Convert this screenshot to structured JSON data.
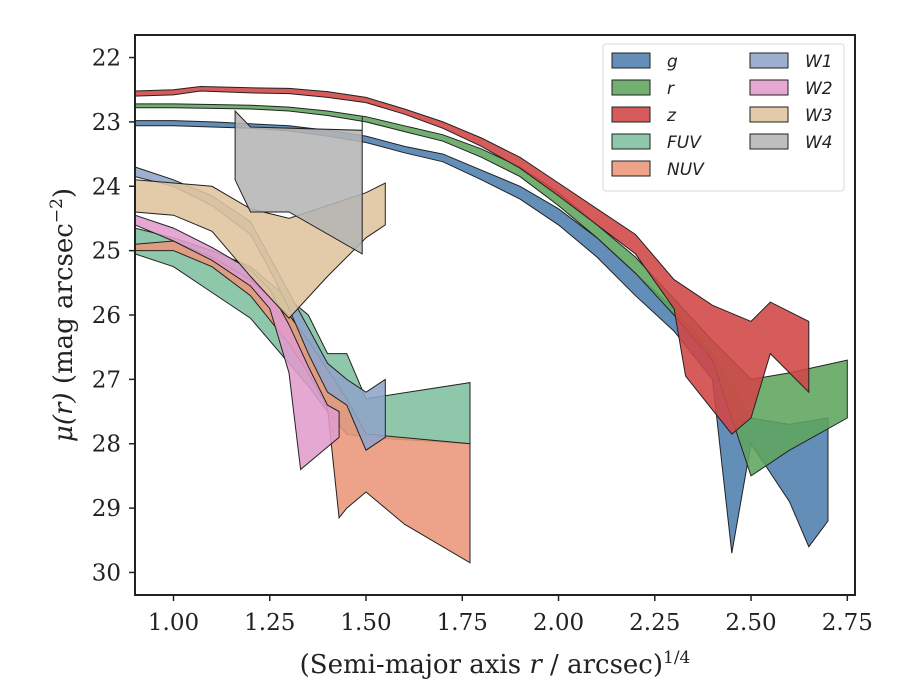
{
  "chart_data": {
    "type": "area",
    "xlabel": "(Semi-major axis r / arcsec)^1/4",
    "xlabel_parts": {
      "prefix": "(Semi-major axis ",
      "var": "r",
      "suffix": " / arcsec)",
      "exp": "1/4"
    },
    "ylabel": "μ(r) (mag arcsec^-2)",
    "ylabel_parts": {
      "mu": "μ(",
      "var": "r",
      "close": ")",
      "unit": " (mag arcsec",
      "exp": "−2",
      "end": ")"
    },
    "xlim": [
      0.9,
      2.77
    ],
    "ylim": [
      30.35,
      21.65
    ],
    "y_inverted": true,
    "x_ticks": [
      1.0,
      1.25,
      1.5,
      1.75,
      2.0,
      2.25,
      2.5,
      2.75
    ],
    "x_tick_labels": [
      "1.00",
      "1.25",
      "1.50",
      "1.75",
      "2.00",
      "2.25",
      "2.50",
      "2.75"
    ],
    "y_ticks": [
      22,
      23,
      24,
      25,
      26,
      27,
      28,
      29,
      30
    ],
    "y_tick_labels": [
      "22",
      "23",
      "24",
      "25",
      "26",
      "27",
      "28",
      "29",
      "30"
    ],
    "legend": {
      "placement": "top-right",
      "columns": 2
    },
    "series": [
      {
        "name": "g",
        "color": "#4c7eae",
        "upper": [
          [
            0.9,
            22.98
          ],
          [
            1.0,
            22.98
          ],
          [
            1.1,
            23.0
          ],
          [
            1.2,
            23.03
          ],
          [
            1.3,
            23.06
          ],
          [
            1.4,
            23.13
          ],
          [
            1.5,
            23.22
          ],
          [
            1.6,
            23.38
          ],
          [
            1.7,
            23.5
          ],
          [
            1.8,
            23.75
          ],
          [
            1.9,
            24.0
          ],
          [
            2.0,
            24.35
          ],
          [
            2.1,
            24.8
          ],
          [
            2.2,
            25.35
          ],
          [
            2.3,
            25.9
          ],
          [
            2.4,
            26.6
          ],
          [
            2.5,
            27.6
          ],
          [
            2.6,
            27.7
          ],
          [
            2.7,
            27.6
          ]
        ],
        "lower": [
          [
            0.9,
            23.06
          ],
          [
            1.0,
            23.06
          ],
          [
            1.1,
            23.08
          ],
          [
            1.2,
            23.1
          ],
          [
            1.3,
            23.14
          ],
          [
            1.4,
            23.22
          ],
          [
            1.5,
            23.32
          ],
          [
            1.6,
            23.48
          ],
          [
            1.7,
            23.62
          ],
          [
            1.8,
            23.9
          ],
          [
            1.9,
            24.2
          ],
          [
            2.0,
            24.6
          ],
          [
            2.1,
            25.1
          ],
          [
            2.2,
            25.7
          ],
          [
            2.3,
            26.25
          ],
          [
            2.4,
            27.0
          ],
          [
            2.45,
            29.7
          ],
          [
            2.5,
            28.0
          ],
          [
            2.6,
            28.9
          ],
          [
            2.65,
            29.6
          ],
          [
            2.7,
            29.2
          ]
        ]
      },
      {
        "name": "r",
        "color": "#5ea55e",
        "upper": [
          [
            0.9,
            22.72
          ],
          [
            1.0,
            22.72
          ],
          [
            1.1,
            22.73
          ],
          [
            1.2,
            22.74
          ],
          [
            1.3,
            22.77
          ],
          [
            1.4,
            22.83
          ],
          [
            1.5,
            22.92
          ],
          [
            1.6,
            23.06
          ],
          [
            1.7,
            23.2
          ],
          [
            1.8,
            23.42
          ],
          [
            1.9,
            23.7
          ],
          [
            2.0,
            24.1
          ],
          [
            2.1,
            24.6
          ],
          [
            2.2,
            25.1
          ],
          [
            2.3,
            25.75
          ],
          [
            2.4,
            26.4
          ],
          [
            2.5,
            27.0
          ],
          [
            2.6,
            26.9
          ],
          [
            2.75,
            26.7
          ]
        ],
        "lower": [
          [
            0.9,
            22.78
          ],
          [
            1.0,
            22.78
          ],
          [
            1.1,
            22.79
          ],
          [
            1.2,
            22.8
          ],
          [
            1.3,
            22.83
          ],
          [
            1.4,
            22.9
          ],
          [
            1.5,
            23.0
          ],
          [
            1.6,
            23.15
          ],
          [
            1.7,
            23.3
          ],
          [
            1.8,
            23.55
          ],
          [
            1.9,
            23.85
          ],
          [
            2.0,
            24.3
          ],
          [
            2.1,
            24.8
          ],
          [
            2.2,
            25.35
          ],
          [
            2.3,
            26.0
          ],
          [
            2.4,
            26.7
          ],
          [
            2.5,
            28.5
          ],
          [
            2.6,
            28.1
          ],
          [
            2.75,
            27.6
          ]
        ]
      },
      {
        "name": "z",
        "color": "#d04545",
        "upper": [
          [
            0.9,
            22.52
          ],
          [
            1.0,
            22.5
          ],
          [
            1.07,
            22.45
          ],
          [
            1.2,
            22.47
          ],
          [
            1.3,
            22.48
          ],
          [
            1.4,
            22.53
          ],
          [
            1.5,
            22.62
          ],
          [
            1.6,
            22.8
          ],
          [
            1.7,
            23.0
          ],
          [
            1.8,
            23.25
          ],
          [
            1.9,
            23.55
          ],
          [
            2.0,
            23.95
          ],
          [
            2.1,
            24.35
          ],
          [
            2.2,
            24.75
          ],
          [
            2.3,
            25.45
          ],
          [
            2.4,
            25.85
          ],
          [
            2.5,
            26.1
          ],
          [
            2.55,
            25.8
          ],
          [
            2.65,
            26.1
          ]
        ],
        "lower": [
          [
            0.9,
            22.6
          ],
          [
            1.0,
            22.58
          ],
          [
            1.07,
            22.52
          ],
          [
            1.2,
            22.55
          ],
          [
            1.3,
            22.56
          ],
          [
            1.4,
            22.62
          ],
          [
            1.5,
            22.7
          ],
          [
            1.6,
            22.88
          ],
          [
            1.7,
            23.1
          ],
          [
            1.8,
            23.38
          ],
          [
            1.9,
            23.72
          ],
          [
            2.0,
            24.15
          ],
          [
            2.1,
            24.6
          ],
          [
            2.2,
            25.05
          ],
          [
            2.3,
            25.9
          ],
          [
            2.33,
            26.95
          ],
          [
            2.45,
            27.85
          ],
          [
            2.5,
            27.6
          ],
          [
            2.55,
            26.6
          ],
          [
            2.65,
            27.2
          ]
        ]
      },
      {
        "name": "FUV",
        "color": "#7fbf9f",
        "upper": [
          [
            0.9,
            24.65
          ],
          [
            1.0,
            24.8
          ],
          [
            1.1,
            25.0
          ],
          [
            1.2,
            25.25
          ],
          [
            1.3,
            25.75
          ],
          [
            1.35,
            26.0
          ],
          [
            1.4,
            26.6
          ],
          [
            1.45,
            26.6
          ],
          [
            1.5,
            27.3
          ],
          [
            1.77,
            27.05
          ]
        ],
        "lower": [
          [
            0.9,
            25.05
          ],
          [
            1.0,
            25.25
          ],
          [
            1.1,
            25.65
          ],
          [
            1.2,
            26.05
          ],
          [
            1.3,
            26.75
          ],
          [
            1.35,
            27.1
          ],
          [
            1.4,
            27.5
          ],
          [
            1.45,
            27.85
          ],
          [
            1.5,
            27.9
          ],
          [
            1.77,
            28.0
          ]
        ]
      },
      {
        "name": "NUV",
        "color": "#e9967a",
        "upper": [
          [
            0.9,
            24.9
          ],
          [
            1.0,
            24.85
          ],
          [
            1.1,
            25.1
          ],
          [
            1.2,
            25.45
          ],
          [
            1.3,
            26.0
          ],
          [
            1.35,
            26.4
          ],
          [
            1.4,
            26.85
          ],
          [
            1.45,
            27.3
          ],
          [
            1.5,
            27.85
          ],
          [
            1.77,
            28.0
          ]
        ],
        "lower": [
          [
            0.9,
            25.0
          ],
          [
            1.0,
            25.0
          ],
          [
            1.1,
            25.25
          ],
          [
            1.2,
            25.7
          ],
          [
            1.3,
            26.45
          ],
          [
            1.35,
            26.9
          ],
          [
            1.4,
            27.45
          ],
          [
            1.43,
            29.15
          ],
          [
            1.45,
            29.0
          ],
          [
            1.5,
            28.75
          ],
          [
            1.6,
            29.25
          ],
          [
            1.77,
            29.85
          ]
        ]
      },
      {
        "name": "W1",
        "color": "#8fa5c8",
        "upper": [
          [
            0.9,
            23.7
          ],
          [
            1.0,
            23.9
          ],
          [
            1.1,
            24.15
          ],
          [
            1.2,
            24.55
          ],
          [
            1.25,
            25.1
          ],
          [
            1.3,
            25.65
          ],
          [
            1.35,
            26.2
          ],
          [
            1.4,
            26.75
          ],
          [
            1.45,
            27.0
          ],
          [
            1.5,
            27.2
          ],
          [
            1.55,
            27.0
          ]
        ],
        "lower": [
          [
            0.9,
            23.85
          ],
          [
            1.0,
            24.0
          ],
          [
            1.1,
            24.3
          ],
          [
            1.2,
            24.75
          ],
          [
            1.25,
            25.3
          ],
          [
            1.3,
            25.9
          ],
          [
            1.35,
            26.6
          ],
          [
            1.4,
            27.2
          ],
          [
            1.45,
            27.4
          ],
          [
            1.5,
            28.1
          ],
          [
            1.55,
            27.9
          ]
        ]
      },
      {
        "name": "W2",
        "color": "#e09ccc",
        "upper": [
          [
            0.9,
            24.45
          ],
          [
            1.0,
            24.65
          ],
          [
            1.1,
            24.95
          ],
          [
            1.2,
            25.3
          ],
          [
            1.25,
            25.6
          ],
          [
            1.3,
            26.15
          ],
          [
            1.35,
            26.8
          ],
          [
            1.4,
            27.4
          ],
          [
            1.43,
            27.5
          ]
        ],
        "lower": [
          [
            0.9,
            24.6
          ],
          [
            1.0,
            24.85
          ],
          [
            1.1,
            25.15
          ],
          [
            1.2,
            25.55
          ],
          [
            1.25,
            25.9
          ],
          [
            1.3,
            26.9
          ],
          [
            1.33,
            28.4
          ],
          [
            1.37,
            28.2
          ],
          [
            1.43,
            27.9
          ]
        ]
      },
      {
        "name": "W3",
        "color": "#dfc49e",
        "upper": [
          [
            0.9,
            23.9
          ],
          [
            1.0,
            23.95
          ],
          [
            1.1,
            24.0
          ],
          [
            1.2,
            24.35
          ],
          [
            1.3,
            24.5
          ],
          [
            1.4,
            24.3
          ],
          [
            1.5,
            24.1
          ],
          [
            1.55,
            23.95
          ]
        ],
        "lower": [
          [
            0.9,
            24.4
          ],
          [
            1.0,
            24.45
          ],
          [
            1.1,
            24.7
          ],
          [
            1.2,
            25.4
          ],
          [
            1.3,
            26.05
          ],
          [
            1.4,
            25.4
          ],
          [
            1.5,
            24.8
          ],
          [
            1.55,
            24.6
          ]
        ]
      },
      {
        "name": "W4",
        "color": "#b5b5b5",
        "upper": [
          [
            1.16,
            22.83
          ],
          [
            1.2,
            23.08
          ],
          [
            1.49,
            23.13
          ],
          [
            1.49,
            22.92
          ]
        ],
        "lower": [
          [
            1.16,
            23.9
          ],
          [
            1.2,
            24.4
          ],
          [
            1.3,
            24.4
          ],
          [
            1.49,
            25.05
          ],
          [
            1.49,
            24.85
          ]
        ]
      }
    ]
  }
}
